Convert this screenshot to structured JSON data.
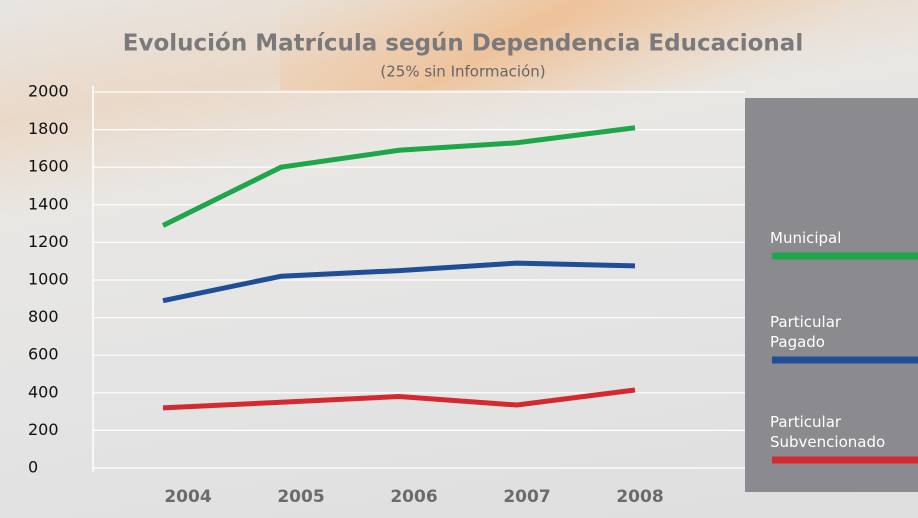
{
  "chart_data": {
    "type": "line",
    "title": "Evolución Matrícula según Dependencia Educacional",
    "subtitle": "(25% sin Información)",
    "categories": [
      "2004",
      "2005",
      "2006",
      "2007",
      "2008"
    ],
    "series": [
      {
        "name": "Municipal",
        "color": "#1fa64a",
        "values": [
          1290,
          1600,
          1690,
          1730,
          1810
        ]
      },
      {
        "name": "Particular Pagado",
        "color": "#1f4e96",
        "values": [
          890,
          1020,
          1050,
          1090,
          1075
        ]
      },
      {
        "name": "Particular Subvencionado",
        "color": "#d42a2f",
        "values": [
          320,
          350,
          380,
          335,
          415
        ]
      }
    ],
    "ylim": [
      0,
      2000
    ],
    "yticks": [
      0,
      200,
      400,
      600,
      800,
      1000,
      1200,
      1400,
      1600,
      1800,
      2000
    ],
    "grid": true,
    "legend": "right"
  }
}
